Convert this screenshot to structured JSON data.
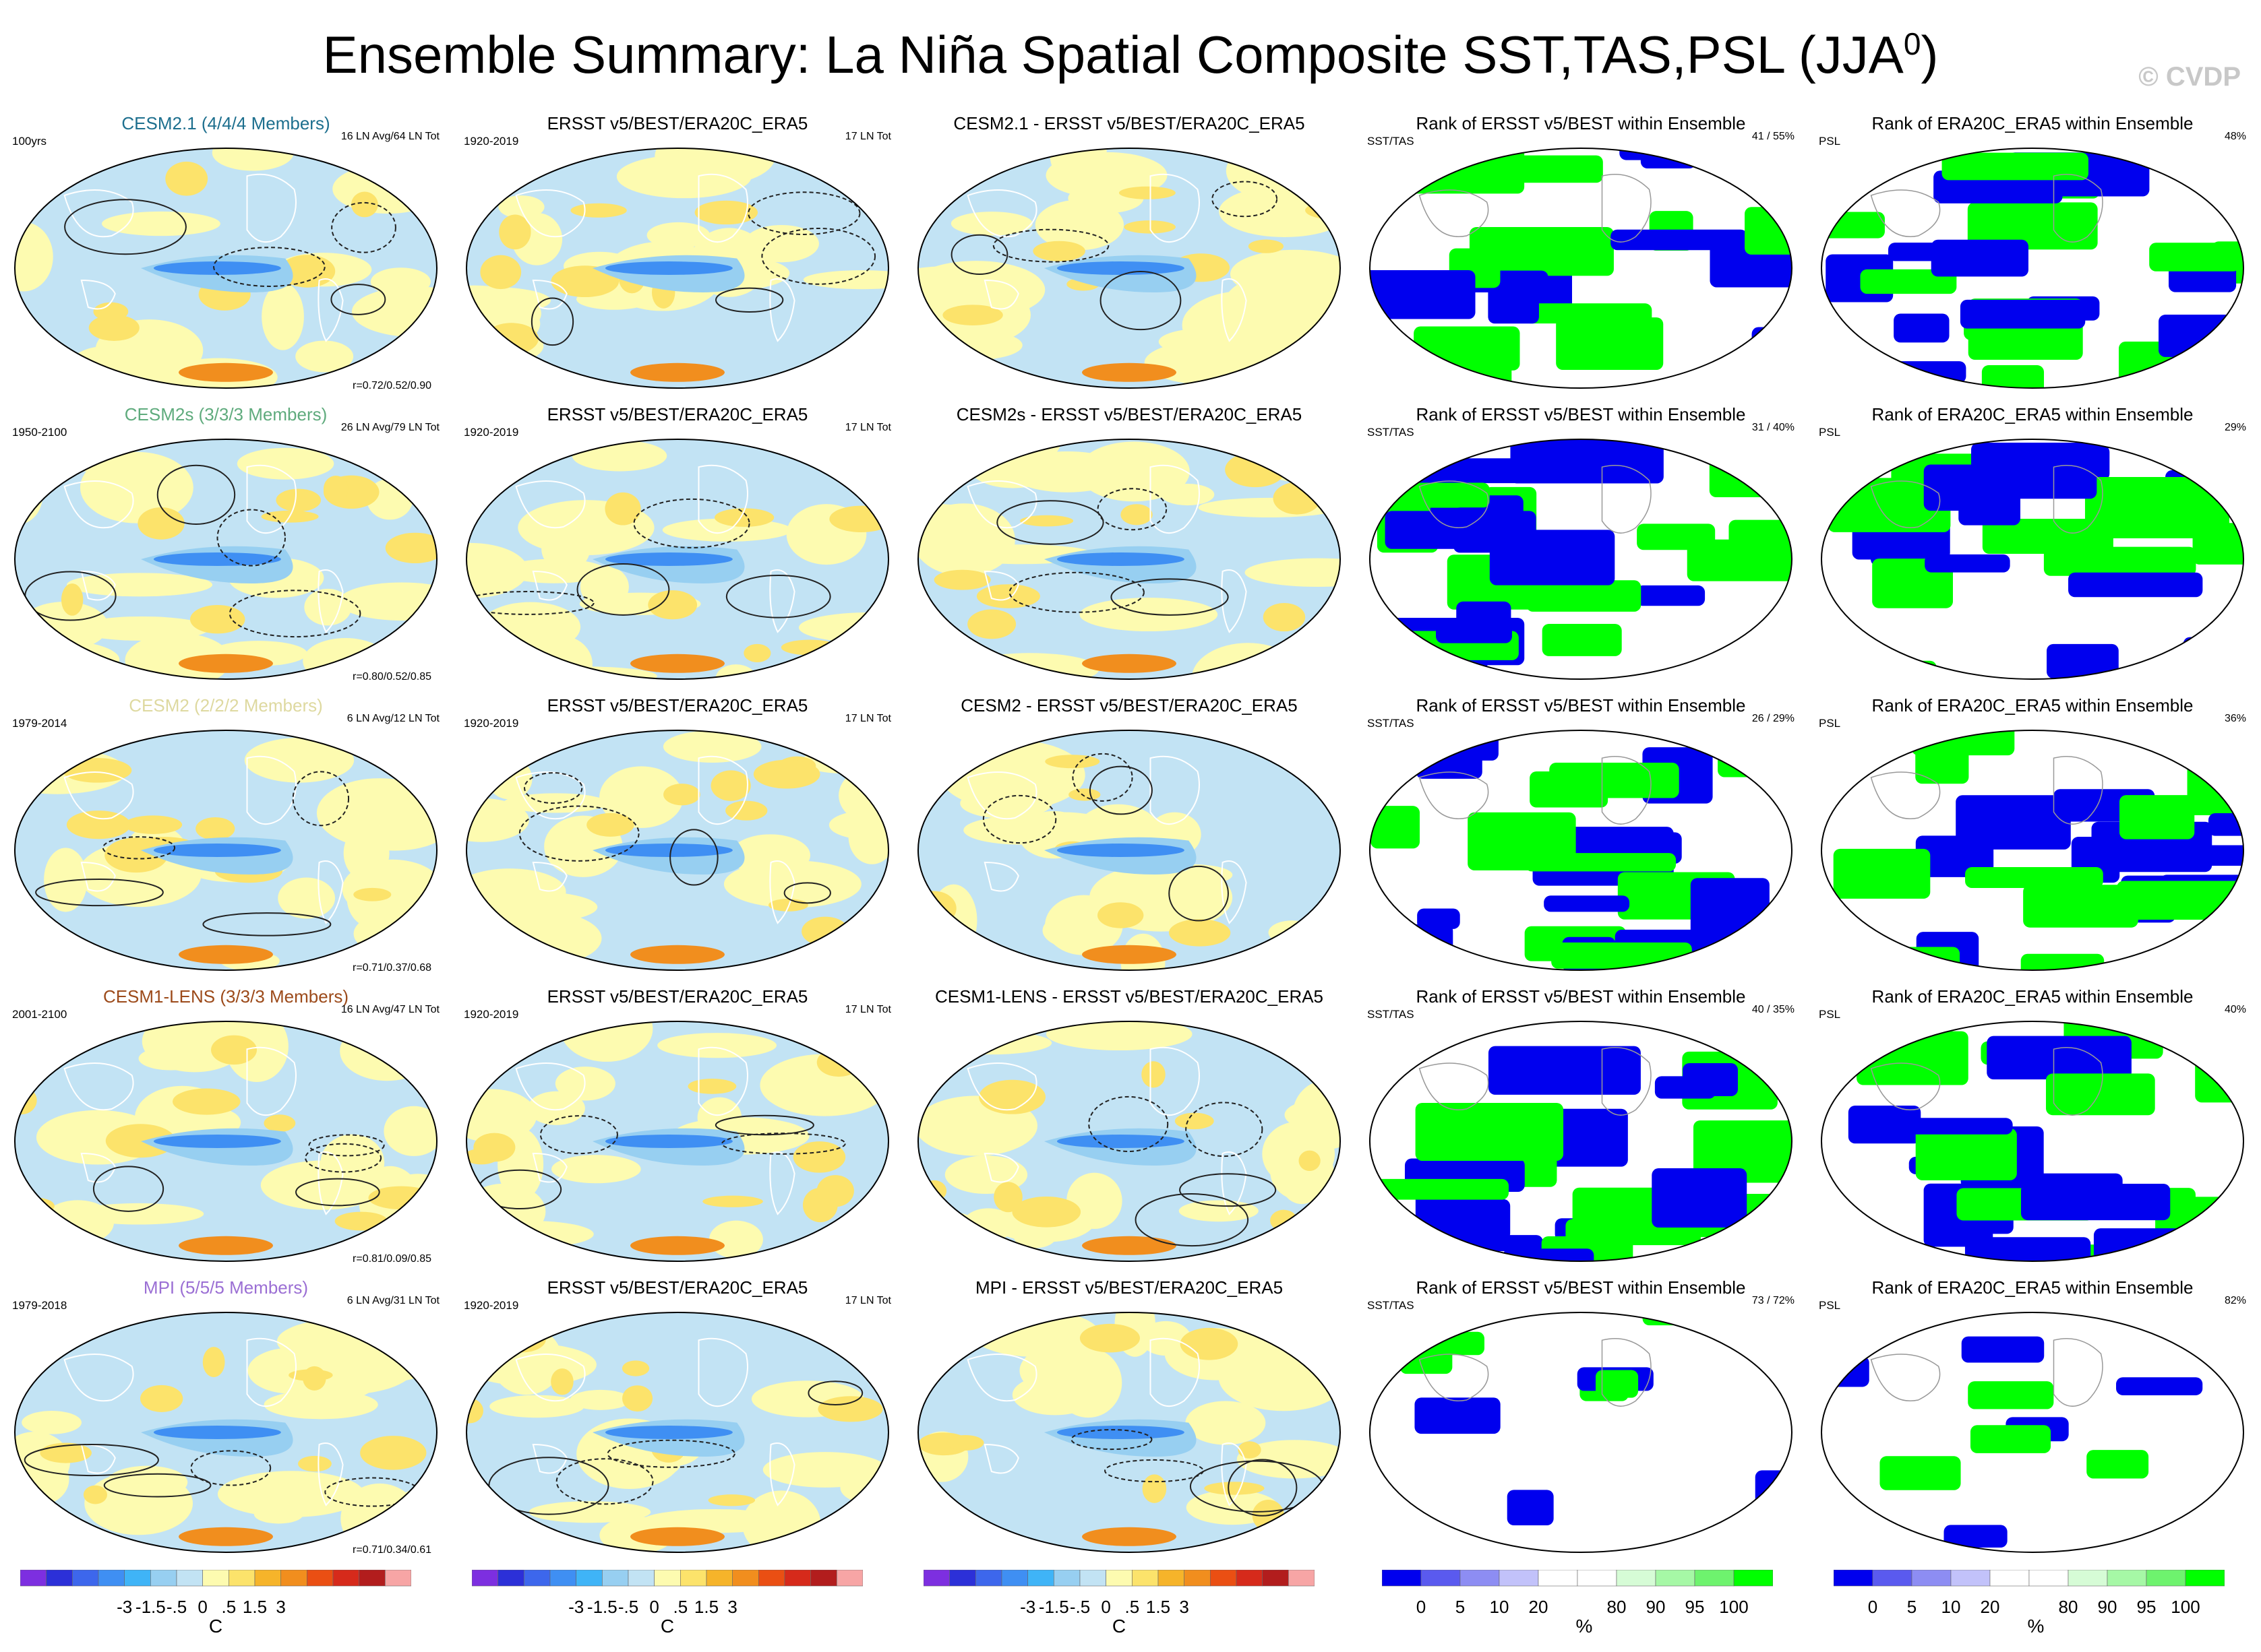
{
  "title": "Ensemble Summary: La Niña Spatial Composite SST,TAS,PSL (JJA",
  "title_sup": "0",
  "title_close": ")",
  "credit": "© CVDP",
  "colors": {
    "temp_scale": [
      "#7d2fe0",
      "#2c30d8",
      "#3d67ec",
      "#3f8ff3",
      "#3fb4f7",
      "#97cff1",
      "#c2e3f4",
      "#fdfbb0",
      "#fce36b",
      "#f6b42a",
      "#f18e1e",
      "#ea4f13",
      "#d62a1b",
      "#b21d1d",
      "#f7a5a5"
    ],
    "rank_scale": [
      "#0000ee",
      "#5a5aef",
      "#8d8df3",
      "#c2c2fa",
      "#ffffff",
      "#ffffff",
      "#d6fcd6",
      "#a6f8a6",
      "#6ef36e",
      "#00ff00"
    ],
    "rank_blue": "#0000ee",
    "rank_green": "#00ff00",
    "cesm21": "#1d6f8e",
    "cesm2s": "#5fab7d",
    "cesm2": "#ded9a0",
    "cesm1lens": "#9c4a1a",
    "mpi": "#9b6fd4"
  },
  "rows": [
    {
      "model": "CESM2.1 (4/4/4 Members)",
      "model_color": "#1d6f8e",
      "period": "100yrs",
      "events": "16 LN Avg/64 LN Tot",
      "corr": "r=0.72/0.52/0.90",
      "obs_title": "ERSST v5/BEST/ERA20C_ERA5",
      "obs_period": "1920-2019",
      "obs_events": "17 LN Tot",
      "diff_title": "CESM2.1 - ERSST v5/BEST/ERA20C_ERA5",
      "rank1_title": "Rank of ERSST v5/BEST within Ensemble",
      "rank1_var": "SST/TAS",
      "rank1_pct": "41 /  55%",
      "rank2_title": "Rank of ERA20C_ERA5 within Ensemble",
      "rank2_var": "PSL",
      "rank2_pct": "48%"
    },
    {
      "model": "CESM2s (3/3/3 Members)",
      "model_color": "#5fab7d",
      "period": "1950-2100",
      "events": "26 LN Avg/79 LN Tot",
      "corr": "r=0.80/0.52/0.85",
      "obs_title": "ERSST v5/BEST/ERA20C_ERA5",
      "obs_period": "1920-2019",
      "obs_events": "17 LN Tot",
      "diff_title": "CESM2s - ERSST v5/BEST/ERA20C_ERA5",
      "rank1_title": "Rank of ERSST v5/BEST within Ensemble",
      "rank1_var": "SST/TAS",
      "rank1_pct": "31 /  40%",
      "rank2_title": "Rank of ERA20C_ERA5 within Ensemble",
      "rank2_var": "PSL",
      "rank2_pct": "29%"
    },
    {
      "model": "CESM2 (2/2/2 Members)",
      "model_color": "#ded9a0",
      "period": "1979-2014",
      "events": "6 LN Avg/12 LN Tot",
      "corr": "r=0.71/0.37/0.68",
      "obs_title": "ERSST v5/BEST/ERA20C_ERA5",
      "obs_period": "1920-2019",
      "obs_events": "17 LN Tot",
      "diff_title": "CESM2 - ERSST v5/BEST/ERA20C_ERA5",
      "rank1_title": "Rank of ERSST v5/BEST within Ensemble",
      "rank1_var": "SST/TAS",
      "rank1_pct": "26 /  29%",
      "rank2_title": "Rank of ERA20C_ERA5 within Ensemble",
      "rank2_var": "PSL",
      "rank2_pct": "36%"
    },
    {
      "model": "CESM1-LENS (3/3/3 Members)",
      "model_color": "#9c4a1a",
      "period": "2001-2100",
      "events": "16 LN Avg/47 LN Tot",
      "corr": "r=0.81/0.09/0.85",
      "obs_title": "ERSST v5/BEST/ERA20C_ERA5",
      "obs_period": "1920-2019",
      "obs_events": "17 LN Tot",
      "diff_title": "CESM1-LENS - ERSST v5/BEST/ERA20C_ERA5",
      "rank1_title": "Rank of ERSST v5/BEST within Ensemble",
      "rank1_var": "SST/TAS",
      "rank1_pct": "40 /  35%",
      "rank2_title": "Rank of ERA20C_ERA5 within Ensemble",
      "rank2_var": "PSL",
      "rank2_pct": "40%"
    },
    {
      "model": "MPI (5/5/5 Members)",
      "model_color": "#9b6fd4",
      "period": "1979-2018",
      "events": "6 LN Avg/31 LN Tot",
      "corr": "r=0.71/0.34/0.61",
      "obs_title": "ERSST v5/BEST/ERA20C_ERA5",
      "obs_period": "1920-2019",
      "obs_events": "17 LN Tot",
      "diff_title": "MPI - ERSST v5/BEST/ERA20C_ERA5",
      "rank1_title": "Rank of ERSST v5/BEST within Ensemble",
      "rank1_var": "SST/TAS",
      "rank1_pct": "73 /  72%",
      "rank2_title": "Rank of ERA20C_ERA5 within Ensemble",
      "rank2_var": "PSL",
      "rank2_pct": "82%"
    }
  ],
  "chart_data": {
    "type": "heatmap",
    "layout": "5 rows x 5 columns of global map panels",
    "temperature_colorbar": {
      "labels": [
        "-3",
        "-1.5",
        "-.5",
        "0",
        ".5",
        "1.5",
        "3"
      ],
      "unit": "C"
    },
    "rank_colorbar": {
      "labels": [
        "0",
        "5",
        "10",
        "20",
        "80",
        "90",
        "95",
        "100"
      ],
      "unit": "%"
    }
  }
}
